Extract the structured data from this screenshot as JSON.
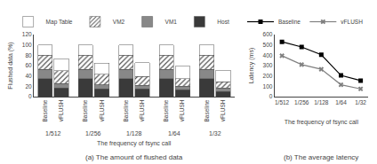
{
  "chart_data": [
    {
      "type": "bar",
      "stacked": true,
      "title": "(a) The amount of flushed data",
      "xlabel": "The frequency of fsync call",
      "ylabel": "Flushed data (%)",
      "categories": [
        "1/512",
        "1/256",
        "1/128",
        "1/64",
        "1/32"
      ],
      "stacks": [
        "Baseline",
        "vFLUSH"
      ],
      "series": [
        {
          "name": "Host",
          "color": "#3a3a3a",
          "values": [
            [
              35,
              35,
              35,
              35,
              35
            ],
            [
              17,
              15,
              15,
              13,
              10
            ]
          ]
        },
        {
          "name": "VM1",
          "color": "#888888",
          "values": [
            [
              18,
              18,
              18,
              18,
              18
            ],
            [
              8,
              8,
              7,
              7,
              7
            ]
          ]
        },
        {
          "name": "VM2",
          "color": "#b0b0b0",
          "marker": "hatch",
          "values": [
            [
              27,
              27,
              27,
              27,
              27
            ],
            [
              25,
              20,
              17,
              15,
              12
            ]
          ]
        },
        {
          "name": "Map Table",
          "color": "#ffffff",
          "values": [
            [
              20,
              20,
              20,
              20,
              20
            ],
            [
              23,
              22,
              27,
              24,
              22
            ]
          ]
        }
      ],
      "ylim": [
        0,
        120
      ],
      "yticks": [
        0,
        20,
        40,
        60,
        80,
        100,
        120
      ],
      "grid": false,
      "legend": "upper right"
    },
    {
      "type": "line",
      "title": "(b) The average latency",
      "xlabel": "The frequency of fsync call",
      "ylabel": "Latency (ms)",
      "categories": [
        "1/512",
        "1/256",
        "1/128",
        "1/64",
        "1/32"
      ],
      "series": [
        {
          "name": "Baseline",
          "color": "black",
          "marker": "square",
          "values": [
            530,
            480,
            405,
            205,
            155
          ]
        },
        {
          "name": "vFLUSH",
          "color": "gray",
          "marker": "x",
          "values": [
            395,
            310,
            265,
            115,
            75
          ]
        }
      ],
      "ylim": [
        0,
        600
      ],
      "yticks": [
        0,
        100,
        200,
        300,
        400,
        500,
        600
      ],
      "grid": false,
      "legend": "upper right"
    }
  ]
}
